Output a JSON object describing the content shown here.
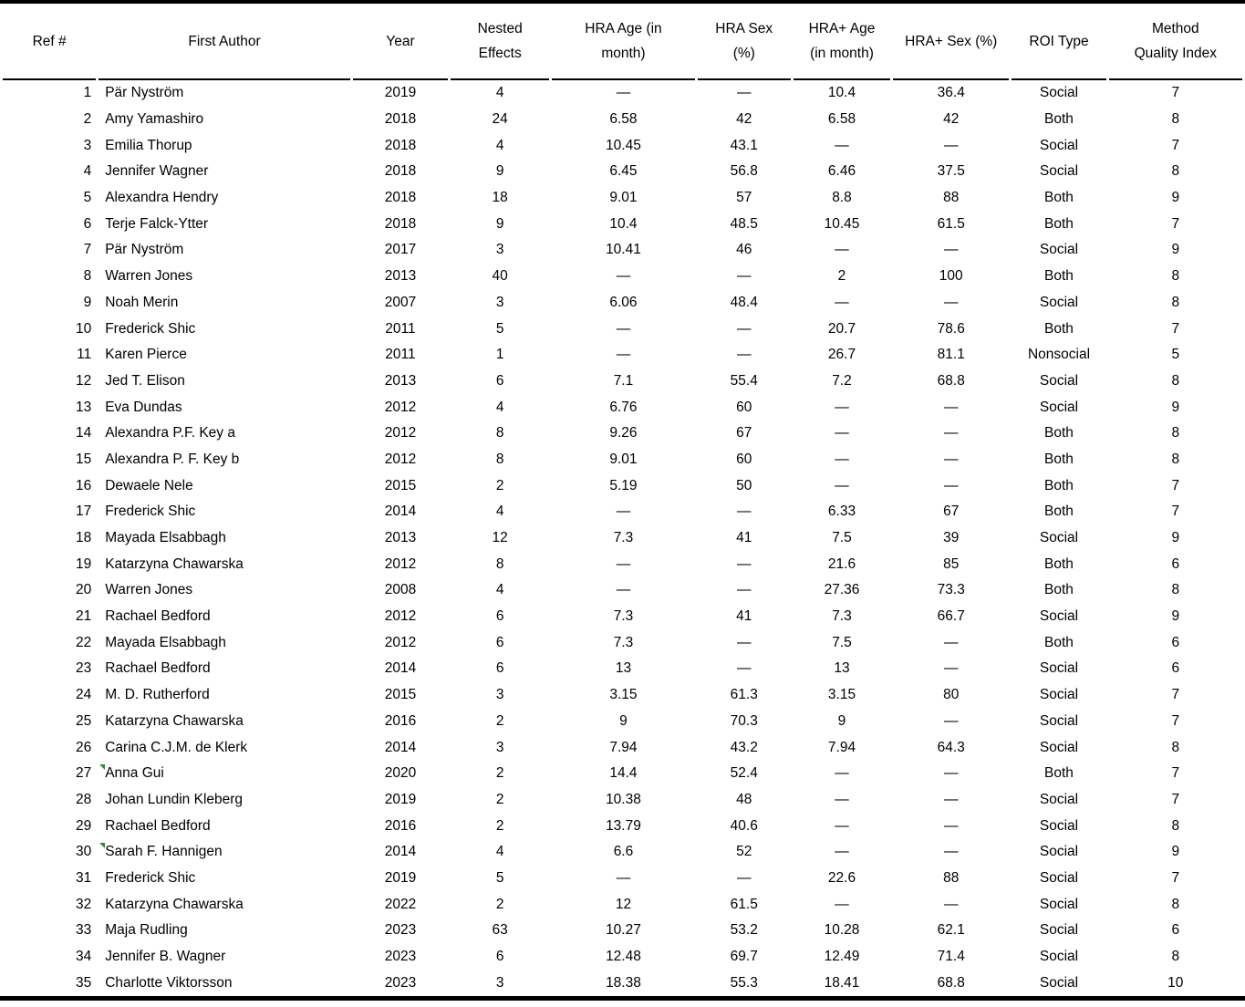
{
  "colors": {
    "border": "#000000",
    "text": "#000000",
    "background": "#ffffff",
    "marker_green": "#2f8b2f"
  },
  "table": {
    "columns": [
      {
        "key": "ref",
        "label": "Ref #"
      },
      {
        "key": "first-author",
        "label": "First Author"
      },
      {
        "key": "year",
        "label": "Year"
      },
      {
        "key": "nested",
        "label": "Nested\nEffects"
      },
      {
        "key": "hra-age",
        "label": "HRA Age (in\nmonth)"
      },
      {
        "key": "hra-sex",
        "label": "HRA Sex\n(%)"
      },
      {
        "key": "hra-plus-age",
        "label": "HRA+ Age\n(in month)"
      },
      {
        "key": "hra-plus-sex",
        "label": "HRA+ Sex (%)"
      },
      {
        "key": "roi-type",
        "label": "ROI Type"
      },
      {
        "key": "quality",
        "label": "Method\nQuality Index"
      }
    ],
    "rows": [
      {
        "marker": false,
        "cells": [
          "1",
          "Pär Nyström",
          "2019",
          "4",
          "—",
          "—",
          "10.4",
          "36.4",
          "Social",
          "7"
        ]
      },
      {
        "marker": false,
        "cells": [
          "2",
          "Amy Yamashiro",
          "2018",
          "24",
          "6.58",
          "42",
          "6.58",
          "42",
          "Both",
          "8"
        ]
      },
      {
        "marker": false,
        "cells": [
          "3",
          "Emilia Thorup",
          "2018",
          "4",
          "10.45",
          "43.1",
          "—",
          "—",
          "Social",
          "7"
        ]
      },
      {
        "marker": false,
        "cells": [
          "4",
          "Jennifer Wagner",
          "2018",
          "9",
          "6.45",
          "56.8",
          "6.46",
          "37.5",
          "Social",
          "8"
        ]
      },
      {
        "marker": false,
        "cells": [
          "5",
          "Alexandra Hendry",
          "2018",
          "18",
          "9.01",
          "57",
          "8.8",
          "88",
          "Both",
          "9"
        ]
      },
      {
        "marker": false,
        "cells": [
          "6",
          "Terje Falck-Ytter",
          "2018",
          "9",
          "10.4",
          "48.5",
          "10.45",
          "61.5",
          "Both",
          "7"
        ]
      },
      {
        "marker": false,
        "cells": [
          "7",
          "Pär Nyström",
          "2017",
          "3",
          "10.41",
          "46",
          "—",
          "—",
          "Social",
          "9"
        ]
      },
      {
        "marker": false,
        "cells": [
          "8",
          "Warren Jones",
          "2013",
          "40",
          "—",
          "—",
          "2",
          "100",
          "Both",
          "8"
        ]
      },
      {
        "marker": false,
        "cells": [
          "9",
          "Noah Merin",
          "2007",
          "3",
          "6.06",
          "48.4",
          "—",
          "—",
          "Social",
          "8"
        ]
      },
      {
        "marker": false,
        "cells": [
          "10",
          "Frederick Shic",
          "2011",
          "5",
          "—",
          "—",
          "20.7",
          "78.6",
          "Both",
          "7"
        ]
      },
      {
        "marker": false,
        "cells": [
          "11",
          "Karen Pierce",
          "2011",
          "1",
          "—",
          "—",
          "26.7",
          "81.1",
          "Nonsocial",
          "5"
        ]
      },
      {
        "marker": false,
        "cells": [
          "12",
          "Jed T. Elison",
          "2013",
          "6",
          "7.1",
          "55.4",
          "7.2",
          "68.8",
          "Social",
          "8"
        ]
      },
      {
        "marker": false,
        "cells": [
          "13",
          "Eva Dundas",
          "2012",
          "4",
          "6.76",
          "60",
          "—",
          "—",
          "Social",
          "9"
        ]
      },
      {
        "marker": false,
        "cells": [
          "14",
          "Alexandra P.F. Key a",
          "2012",
          "8",
          "9.26",
          "67",
          "—",
          "—",
          "Both",
          "8"
        ]
      },
      {
        "marker": false,
        "cells": [
          "15",
          "Alexandra P. F. Key b",
          "2012",
          "8",
          "9.01",
          "60",
          "—",
          "—",
          "Both",
          "8"
        ]
      },
      {
        "marker": false,
        "cells": [
          "16",
          "Dewaele Nele",
          "2015",
          "2",
          "5.19",
          "50",
          "—",
          "—",
          "Both",
          "7"
        ]
      },
      {
        "marker": false,
        "cells": [
          "17",
          "Frederick Shic",
          "2014",
          "4",
          "—",
          "—",
          "6.33",
          "67",
          "Both",
          "7"
        ]
      },
      {
        "marker": false,
        "cells": [
          "18",
          "Mayada Elsabbagh",
          "2013",
          "12",
          "7.3",
          "41",
          "7.5",
          "39",
          "Social",
          "9"
        ]
      },
      {
        "marker": false,
        "cells": [
          "19",
          "Katarzyna Chawarska",
          "2012",
          "8",
          "—",
          "—",
          "21.6",
          "85",
          "Both",
          "6"
        ]
      },
      {
        "marker": false,
        "cells": [
          "20",
          "Warren Jones",
          "2008",
          "4",
          "—",
          "—",
          "27.36",
          "73.3",
          "Both",
          "8"
        ]
      },
      {
        "marker": false,
        "cells": [
          "21",
          "Rachael Bedford",
          "2012",
          "6",
          "7.3",
          "41",
          "7.3",
          "66.7",
          "Social",
          "9"
        ]
      },
      {
        "marker": false,
        "cells": [
          "22",
          "Mayada Elsabbagh",
          "2012",
          "6",
          "7.3",
          "—",
          "7.5",
          "—",
          "Both",
          "6"
        ]
      },
      {
        "marker": false,
        "cells": [
          "23",
          "Rachael Bedford",
          "2014",
          "6",
          "13",
          "—",
          "13",
          "—",
          "Social",
          "6"
        ]
      },
      {
        "marker": false,
        "cells": [
          "24",
          "M. D. Rutherford",
          "2015",
          "3",
          "3.15",
          "61.3",
          "3.15",
          "80",
          "Social",
          "7"
        ]
      },
      {
        "marker": false,
        "cells": [
          "25",
          "Katarzyna Chawarska",
          "2016",
          "2",
          "9",
          "70.3",
          "9",
          "—",
          "Social",
          "7"
        ]
      },
      {
        "marker": false,
        "cells": [
          "26",
          "Carina C.J.M. de Klerk",
          "2014",
          "3",
          "7.94",
          "43.2",
          "7.94",
          "64.3",
          "Social",
          "8"
        ]
      },
      {
        "marker": true,
        "cells": [
          "27",
          "Anna Gui",
          "2020",
          "2",
          "14.4",
          "52.4",
          "—",
          "—",
          "Both",
          "7"
        ]
      },
      {
        "marker": false,
        "cells": [
          "28",
          "Johan Lundin Kleberg",
          "2019",
          "2",
          "10.38",
          "48",
          "—",
          "—",
          "Social",
          "7"
        ]
      },
      {
        "marker": false,
        "cells": [
          "29",
          "Rachael Bedford",
          "2016",
          "2",
          "13.79",
          "40.6",
          "—",
          "—",
          "Social",
          "8"
        ]
      },
      {
        "marker": true,
        "cells": [
          "30",
          "Sarah F. Hannigen",
          "2014",
          "4",
          "6.6",
          "52",
          "—",
          "—",
          "Social",
          "9"
        ]
      },
      {
        "marker": false,
        "cells": [
          "31",
          "Frederick Shic",
          "2019",
          "5",
          "—",
          "—",
          "22.6",
          "88",
          "Social",
          "7"
        ]
      },
      {
        "marker": false,
        "cells": [
          "32",
          "Katarzyna Chawarska",
          "2022",
          "2",
          "12",
          "61.5",
          "—",
          "—",
          "Social",
          "8"
        ]
      },
      {
        "marker": false,
        "cells": [
          "33",
          "Maja Rudling",
          "2023",
          "63",
          "10.27",
          "53.2",
          "10.28",
          "62.1",
          "Social",
          "6"
        ]
      },
      {
        "marker": false,
        "cells": [
          "34",
          "Jennifer B. Wagner",
          "2023",
          "6",
          "12.48",
          "69.7",
          "12.49",
          "71.4",
          "Social",
          "8"
        ]
      },
      {
        "marker": false,
        "cells": [
          "35",
          "Charlotte Viktorsson",
          "2023",
          "3",
          "18.38",
          "55.3",
          "18.41",
          "68.8",
          "Social",
          "10"
        ]
      }
    ]
  }
}
